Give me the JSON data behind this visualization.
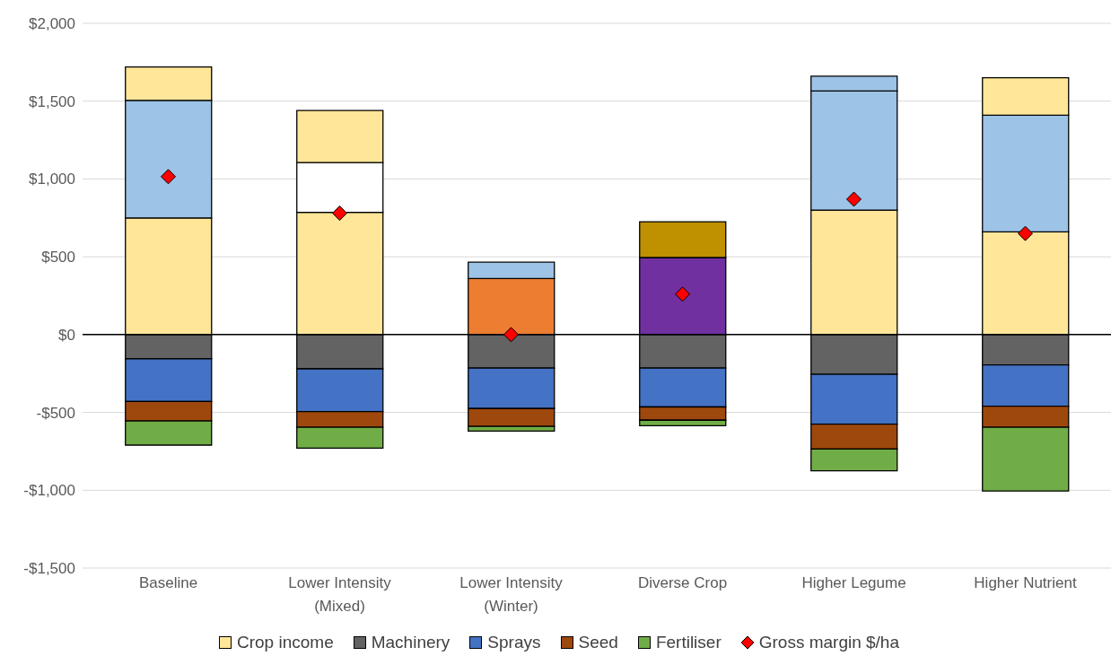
{
  "chart_data": {
    "type": "bar",
    "stacked": true,
    "categories": [
      "Baseline",
      "Lower Intensity\n(Mixed)",
      "Lower Intensity\n(Winter)",
      "Diverse Crop",
      "Higher Legume",
      "Higher Nutrient"
    ],
    "series": [
      {
        "name": "Crop income",
        "color": "#ffe699",
        "values": [
          750,
          785,
          null,
          null,
          800,
          660
        ]
      },
      {
        "color": "#ed7d31",
        "values": [
          null,
          null,
          360,
          null,
          null,
          null
        ]
      },
      {
        "color": "#7030a0",
        "values": [
          null,
          null,
          null,
          495,
          null,
          null
        ]
      },
      {
        "color": "#9dc3e6",
        "values": [
          755,
          null,
          105,
          null,
          765,
          750
        ]
      },
      {
        "color": "#ffffff",
        "values": [
          null,
          320,
          null,
          null,
          null,
          null
        ]
      },
      {
        "color": "#bf9000",
        "values": [
          null,
          null,
          null,
          230,
          null,
          null
        ]
      },
      {
        "color": "#9dc3e6",
        "values": [
          null,
          null,
          null,
          null,
          95,
          null
        ]
      },
      {
        "color": "#ffe699",
        "values": [
          215,
          335,
          null,
          null,
          null,
          240
        ]
      },
      {
        "name": "Machinery",
        "color": "#636363",
        "values": [
          -155,
          -220,
          -215,
          -215,
          -255,
          -195
        ]
      },
      {
        "name": "Sprays",
        "color": "#4472c4",
        "values": [
          -275,
          -275,
          -260,
          -250,
          -320,
          -265
        ]
      },
      {
        "name": "Seed",
        "color": "#9e480e",
        "values": [
          -125,
          -100,
          -115,
          -85,
          -160,
          -135
        ]
      },
      {
        "name": "Fertiliser",
        "color": "#70ad47",
        "values": [
          -155,
          -135,
          -30,
          -35,
          -140,
          -410
        ]
      },
      {
        "name": "Gross margin $/ha",
        "type": "scatter",
        "color": "#ff0000",
        "values": [
          1015,
          780,
          0,
          260,
          870,
          650
        ]
      }
    ],
    "marker": "diamond",
    "ylim": [
      -1500,
      2000
    ],
    "yticks": [
      {
        "value": -1500,
        "label": "-$1,500"
      },
      {
        "value": -1000,
        "label": "-$1,000"
      },
      {
        "value": -500,
        "label": "-$500"
      },
      {
        "value": 0,
        "label": "$0"
      },
      {
        "value": 500,
        "label": "$500"
      },
      {
        "value": 1000,
        "label": "$1,000"
      },
      {
        "value": 1500,
        "label": "$1,500"
      },
      {
        "value": 2000,
        "label": "$2,000"
      }
    ],
    "grid": "y",
    "legend": "bottom"
  }
}
